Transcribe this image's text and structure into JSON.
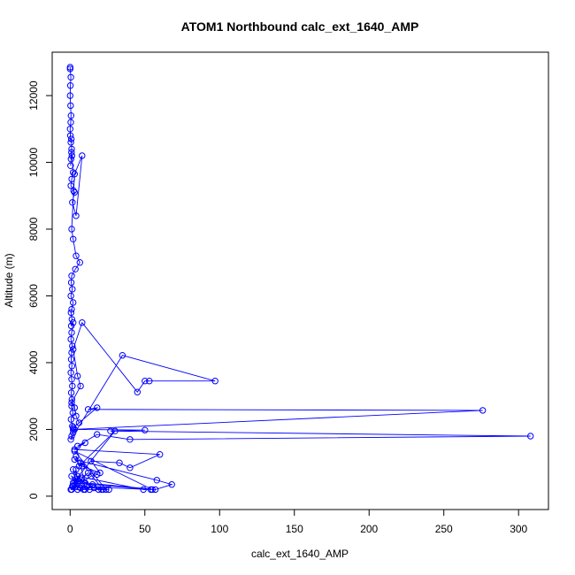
{
  "chart_data": {
    "type": "scatter",
    "title": "ATOM1 Northbound calc_ext_1640_AMP",
    "xlabel": "calc_ext_1640_AMP",
    "ylabel": "Altitude (m)",
    "xlim": [
      -12,
      320
    ],
    "ylim": [
      -400,
      13300
    ],
    "x_ticks": [
      0,
      50,
      100,
      150,
      200,
      250,
      300
    ],
    "y_ticks": [
      0,
      2000,
      4000,
      6000,
      8000,
      10000,
      12000
    ],
    "grid": false,
    "legend": "none",
    "point_style": "open-circle",
    "connect_points": true,
    "series": [
      {
        "color": "#0000ff",
        "x": [
          0,
          0,
          0.5,
          0.2,
          0,
          0.3,
          0.6,
          0.4,
          0,
          0.2,
          0.5,
          0.8,
          1.0,
          0.6,
          0.3,
          0.9,
          1.2,
          2.0,
          1.1,
          0.5,
          2.3,
          3.0,
          1.5,
          4.0,
          8.0,
          3.0,
          1.0,
          2.0,
          4.0,
          6.5,
          3.5,
          1.0,
          0.8,
          1.5,
          0.5,
          2.0,
          1.0,
          0.6,
          1.2,
          0.8,
          2.0,
          1.0,
          0.5,
          1.5,
          1.0,
          0.7,
          1.2,
          0.5,
          1.0,
          1.5,
          0.8,
          1.2,
          1.0,
          1.8,
          0.6,
          1.5,
          3.0,
          2.0,
          1.0,
          0.5,
          35.0,
          97.0,
          53.0,
          50.0,
          45.0,
          8.0,
          2.0,
          5.0,
          7.0,
          1.0,
          3.0,
          4.0,
          6.0,
          2.0,
          18.0,
          12.0,
          276.0,
          2.0,
          50.0,
          27.0,
          308.0,
          40.0,
          18.0,
          5.0,
          10.0,
          3.0,
          60.0,
          40.0,
          33.0,
          14.0,
          20.0,
          8.0,
          3.0,
          58.0,
          68.0,
          57.0,
          10.0,
          5.0,
          49.0,
          54.0,
          2.0,
          26.0,
          21.0,
          15.0,
          4.0,
          7.0,
          11.0,
          13.0,
          19.0,
          6.0,
          1.0,
          3.0,
          9.0,
          2.0,
          5.0,
          1.5,
          0.5,
          12.0,
          8.0,
          16.0,
          22.0,
          4.0,
          6.0,
          30.0,
          2.0,
          55.0,
          3.0,
          24.0,
          1.0,
          14.0,
          18.0,
          7.0,
          10.0,
          2.0,
          4.0,
          5.0
        ],
        "y": [
          12850,
          12800,
          12550,
          12300,
          12000,
          11700,
          11400,
          11200,
          11000,
          10800,
          10600,
          10700,
          10400,
          10100,
          9900,
          10300,
          10200,
          9700,
          9500,
          9300,
          9150,
          9100,
          8800,
          8400,
          10200,
          9650,
          8000,
          7700,
          7200,
          7000,
          6800,
          6600,
          6400,
          6200,
          6000,
          5800,
          5600,
          5500,
          5300,
          5100,
          5200,
          4900,
          4700,
          4500,
          4300,
          4100,
          3900,
          3700,
          3500,
          3300,
          3100,
          2900,
          2700,
          2500,
          2300,
          2100,
          2000,
          1900,
          1800,
          1700,
          4220,
          3450,
          3450,
          3450,
          3120,
          5200,
          4400,
          3600,
          3300,
          2800,
          2650,
          2400,
          2200,
          2050,
          2650,
          2600,
          2570,
          2000,
          1980,
          1950,
          1800,
          1700,
          1850,
          1500,
          1600,
          1400,
          1250,
          850,
          1000,
          1050,
          700,
          900,
          1100,
          480,
          350,
          200,
          400,
          600,
          200,
          200,
          300,
          200,
          200,
          350,
          500,
          250,
          300,
          200,
          200,
          450,
          600,
          400,
          200,
          800,
          200,
          300,
          200,
          700,
          550,
          250,
          200,
          1200,
          900,
          1950,
          400,
          200,
          1350,
          200,
          200,
          600,
          650,
          1000,
          200,
          300,
          800,
          450
        ]
      }
    ]
  }
}
